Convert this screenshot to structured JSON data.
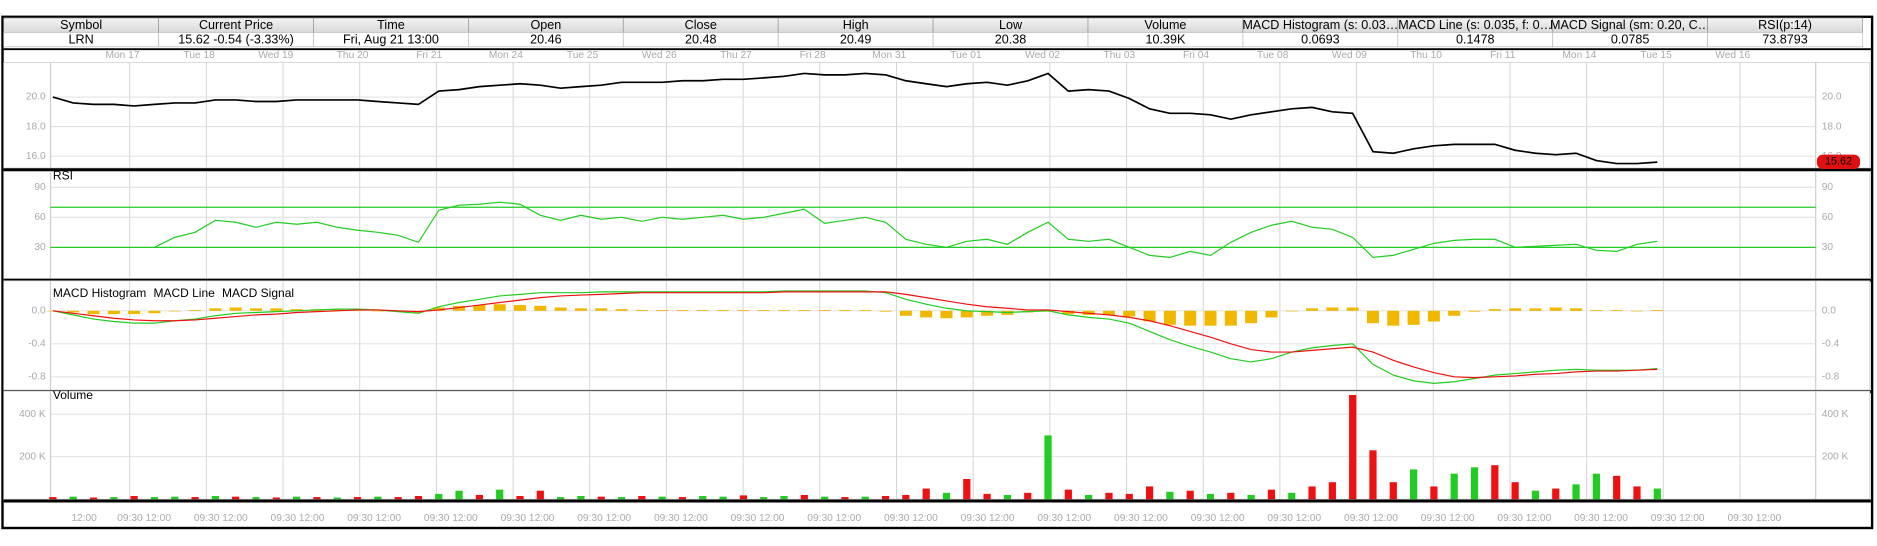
{
  "quote_table": {
    "headers": [
      "Symbol",
      "Current Price",
      "Time",
      "Open",
      "Close",
      "High",
      "Low",
      "Volume",
      "MACD Histogram (s: 0.03…",
      "MACD Line (s: 0.035, f: 0…",
      "MACD Signal (sm: 0.20, C…",
      "RSI(p:14)"
    ],
    "values": [
      "LRN",
      "15.62  -0.54 (-3.33%)",
      "Fri, Aug 21  13:00",
      "20.46",
      "20.48",
      "20.49",
      "20.38",
      "10.39K",
      "0.0693",
      "0.1478",
      "0.0785",
      "73.8793"
    ]
  },
  "date_axis": [
    "Mon 17",
    "Tue 18",
    "Wed 19",
    "Thu 20",
    "Fri 21",
    "Mon 24",
    "Tue 25",
    "Wed 26",
    "Thu 27",
    "Fri 28",
    "Mon 31",
    "Tue 01",
    "Wed 02",
    "Thu 03",
    "Fri 04",
    "Tue 08",
    "Wed 09",
    "Thu 10",
    "Fri 11",
    "Mon 14",
    "Tue 15",
    "Wed 16"
  ],
  "time_axis": [
    "12:00",
    "09:30 12:00",
    "09:30 12:00",
    "09:30 12:00",
    "09:30 12:00",
    "09:30 12:00",
    "09:30 12:00",
    "09:30 12:00",
    "09:30 12:00",
    "09:30 12:00",
    "09:30 12:00",
    "09:30 12:00",
    "09:30 12:00",
    "09:30 12:00",
    "09:30 12:00",
    "09:30 12:00",
    "09:30 12:00",
    "09:30 12:00",
    "09:30 12:00",
    "09:30 12:00",
    "09:30 12:00",
    "09:30 12:00",
    "09:30 12:00"
  ],
  "chart_data": [
    {
      "type": "line",
      "color": "#000000",
      "ylim": [
        15.2,
        22.1
      ],
      "yticks": [
        {
          "value": 16,
          "label": "16.0"
        },
        {
          "value": 18,
          "label": "18.0"
        },
        {
          "value": 20,
          "label": "20.0"
        }
      ],
      "grid": true,
      "last_price": 15.62,
      "values": [
        20.0,
        19.6,
        19.5,
        19.5,
        19.4,
        19.5,
        19.6,
        19.6,
        19.8,
        19.8,
        19.7,
        19.7,
        19.8,
        19.8,
        19.8,
        19.8,
        19.7,
        19.6,
        19.5,
        20.4,
        20.5,
        20.7,
        20.8,
        20.9,
        20.8,
        20.6,
        20.7,
        20.8,
        21.0,
        21.0,
        21.0,
        21.1,
        21.1,
        21.2,
        21.2,
        21.3,
        21.4,
        21.6,
        21.5,
        21.5,
        21.6,
        21.5,
        21.1,
        20.9,
        20.7,
        20.9,
        21.0,
        20.8,
        21.1,
        21.6,
        20.4,
        20.5,
        20.4,
        19.9,
        19.2,
        18.9,
        18.9,
        18.8,
        18.5,
        18.8,
        19.0,
        19.2,
        19.3,
        19.0,
        18.9,
        16.3,
        16.2,
        16.5,
        16.7,
        16.8,
        16.8,
        16.8,
        16.4,
        16.2,
        16.1,
        16.2,
        15.7,
        15.5,
        15.5,
        15.6
      ]
    },
    {
      "type": "line",
      "title": "RSI",
      "color": "#22cc22",
      "ylim": [
        -1,
        102
      ],
      "yticks": [
        30,
        60,
        90
      ],
      "grid": true,
      "reference_lines": [
        30,
        70
      ],
      "values": [
        null,
        null,
        null,
        null,
        null,
        30,
        40,
        45,
        57,
        55,
        50,
        55,
        53,
        55,
        50,
        47,
        45,
        42,
        35,
        67,
        72,
        73,
        75,
        73,
        62,
        57,
        62,
        58,
        60,
        56,
        60,
        58,
        60,
        62,
        58,
        60,
        64,
        68,
        54,
        57,
        60,
        55,
        38,
        33,
        30,
        36,
        38,
        33,
        45,
        55,
        38,
        36,
        38,
        30,
        22,
        20,
        26,
        22,
        35,
        45,
        52,
        56,
        50,
        48,
        40,
        20,
        22,
        28,
        34,
        37,
        38,
        38,
        30,
        31,
        32,
        33,
        27,
        26,
        33,
        36
      ]
    },
    {
      "type": "macd",
      "ylim": [
        -0.96,
        0.32
      ],
      "yticks": [
        {
          "value": 0,
          "label": "0.0"
        },
        {
          "value": -0.4,
          "label": "-0.4"
        },
        {
          "value": -0.8,
          "label": "-0.8"
        }
      ],
      "grid": true,
      "series": [
        {
          "name": "MACD Histogram",
          "color": "#f0b800",
          "style": "bar",
          "values": [
            0,
            -0.02,
            -0.04,
            -0.04,
            -0.04,
            -0.03,
            0,
            0.01,
            0.03,
            0.04,
            0.03,
            0.03,
            0.02,
            0.02,
            0.02,
            0.01,
            0,
            -0.01,
            -0.02,
            0.04,
            0.06,
            0.07,
            0.08,
            0.07,
            0.06,
            0.04,
            0.03,
            0.03,
            0.02,
            0.01,
            0.01,
            0.01,
            0.01,
            0.01,
            0.01,
            0.01,
            0.01,
            0.01,
            0.01,
            0.01,
            0.01,
            -0.01,
            -0.06,
            -0.08,
            -0.09,
            -0.08,
            -0.06,
            -0.05,
            -0.02,
            -0.01,
            -0.04,
            -0.05,
            -0.05,
            -0.07,
            -0.13,
            -0.17,
            -0.18,
            -0.18,
            -0.18,
            -0.15,
            -0.08,
            0,
            0.03,
            0.04,
            0.04,
            -0.15,
            -0.18,
            -0.17,
            -0.13,
            -0.06,
            -0.01,
            0.02,
            0.03,
            0.03,
            0.04,
            0.03,
            0.01,
            0.01,
            0,
            0.01
          ]
        },
        {
          "name": "MACD Line",
          "color": "#22cc22",
          "style": "line",
          "values": [
            0,
            -0.05,
            -0.1,
            -0.13,
            -0.15,
            -0.15,
            -0.12,
            -0.1,
            -0.06,
            -0.03,
            -0.02,
            -0.01,
            0,
            0.01,
            0.02,
            0.02,
            0.01,
            -0.01,
            -0.03,
            0.05,
            0.1,
            0.14,
            0.18,
            0.2,
            0.22,
            0.22,
            0.22,
            0.23,
            0.23,
            0.23,
            0.23,
            0.23,
            0.23,
            0.23,
            0.23,
            0.23,
            0.24,
            0.24,
            0.24,
            0.24,
            0.24,
            0.22,
            0.14,
            0.08,
            0.03,
            0,
            -0.01,
            -0.02,
            -0.01,
            0,
            -0.05,
            -0.08,
            -0.1,
            -0.15,
            -0.25,
            -0.35,
            -0.43,
            -0.5,
            -0.58,
            -0.62,
            -0.58,
            -0.5,
            -0.45,
            -0.42,
            -0.4,
            -0.65,
            -0.78,
            -0.85,
            -0.88,
            -0.86,
            -0.82,
            -0.78,
            -0.76,
            -0.74,
            -0.72,
            -0.71,
            -0.72,
            -0.72,
            -0.72,
            -0.7
          ]
        },
        {
          "name": "MACD Signal",
          "color": "#ee1111",
          "style": "line",
          "values": [
            0,
            -0.03,
            -0.06,
            -0.09,
            -0.11,
            -0.12,
            -0.12,
            -0.11,
            -0.09,
            -0.07,
            -0.05,
            -0.04,
            -0.02,
            -0.01,
            0,
            0.01,
            0.01,
            0,
            -0.01,
            0.01,
            0.04,
            0.07,
            0.1,
            0.13,
            0.16,
            0.18,
            0.19,
            0.2,
            0.21,
            0.22,
            0.22,
            0.22,
            0.22,
            0.22,
            0.22,
            0.22,
            0.23,
            0.23,
            0.23,
            0.23,
            0.23,
            0.23,
            0.2,
            0.16,
            0.12,
            0.08,
            0.05,
            0.03,
            0.01,
            0.01,
            -0.01,
            -0.03,
            -0.05,
            -0.08,
            -0.12,
            -0.18,
            -0.25,
            -0.32,
            -0.4,
            -0.47,
            -0.5,
            -0.5,
            -0.48,
            -0.46,
            -0.44,
            -0.5,
            -0.6,
            -0.68,
            -0.75,
            -0.8,
            -0.81,
            -0.8,
            -0.79,
            -0.77,
            -0.76,
            -0.74,
            -0.73,
            -0.73,
            -0.72,
            -0.71
          ]
        }
      ]
    },
    {
      "type": "bar",
      "title": "Volume",
      "ylim": [
        0,
        491000
      ],
      "yticks": [
        {
          "value": 200000,
          "label": "200 K"
        },
        {
          "value": 400000,
          "label": "400 K"
        }
      ],
      "grid": true,
      "values": [
        10000,
        12000,
        8000,
        10000,
        15000,
        10000,
        12000,
        10000,
        15000,
        12000,
        10000,
        8000,
        12000,
        10000,
        8000,
        10000,
        12000,
        10000,
        15000,
        25000,
        40000,
        20000,
        45000,
        15000,
        40000,
        10000,
        15000,
        12000,
        10000,
        15000,
        12000,
        10000,
        15000,
        12000,
        18000,
        10000,
        15000,
        20000,
        12000,
        10000,
        12000,
        15000,
        20000,
        50000,
        30000,
        95000,
        25000,
        20000,
        30000,
        300000,
        45000,
        20000,
        30000,
        25000,
        60000,
        35000,
        40000,
        25000,
        30000,
        20000,
        45000,
        30000,
        60000,
        80000,
        490000,
        230000,
        80000,
        140000,
        60000,
        120000,
        150000,
        160000,
        80000,
        40000,
        50000,
        70000,
        120000,
        110000,
        60000,
        50000
      ],
      "colors": [
        "#ee1111",
        "#22cc22",
        "#ee1111",
        "#22cc22",
        "#ee1111",
        "#22cc22",
        "#22cc22",
        "#ee1111",
        "#22cc22",
        "#ee1111",
        "#22cc22",
        "#ee1111",
        "#22cc22",
        "#ee1111",
        "#22cc22",
        "#ee1111",
        "#22cc22",
        "#ee1111",
        "#ee1111",
        "#22cc22",
        "#22cc22",
        "#ee1111",
        "#22cc22",
        "#ee1111",
        "#ee1111",
        "#22cc22",
        "#22cc22",
        "#ee1111",
        "#22cc22",
        "#ee1111",
        "#22cc22",
        "#ee1111",
        "#22cc22",
        "#22cc22",
        "#ee1111",
        "#22cc22",
        "#22cc22",
        "#ee1111",
        "#22cc22",
        "#ee1111",
        "#22cc22",
        "#ee1111",
        "#ee1111",
        "#ee1111",
        "#22cc22",
        "#ee1111",
        "#ee1111",
        "#22cc22",
        "#ee1111",
        "#22cc22",
        "#ee1111",
        "#22cc22",
        "#ee1111",
        "#ee1111",
        "#ee1111",
        "#22cc22",
        "#ee1111",
        "#22cc22",
        "#ee1111",
        "#22cc22",
        "#ee1111",
        "#22cc22",
        "#ee1111",
        "#ee1111",
        "#ee1111",
        "#ee1111",
        "#ee1111",
        "#22cc22",
        "#ee1111",
        "#22cc22",
        "#22cc22",
        "#ee1111",
        "#ee1111",
        "#22cc22",
        "#ee1111",
        "#22cc22",
        "#22cc22",
        "#ee1111",
        "#ee1111",
        "#22cc22"
      ]
    }
  ]
}
